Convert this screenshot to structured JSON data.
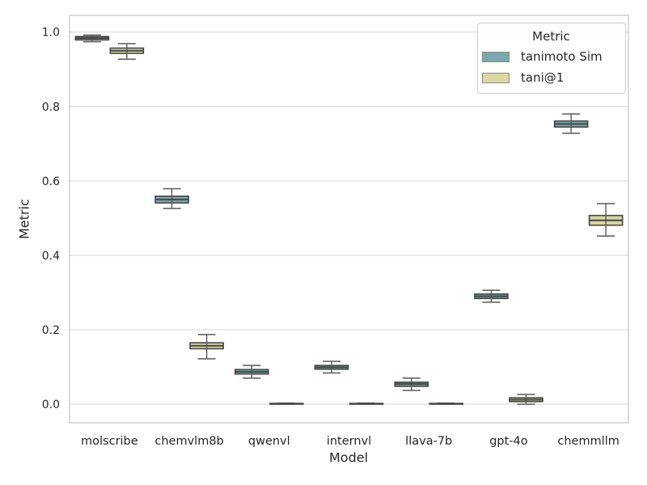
{
  "chart_data": {
    "type": "boxplot",
    "title": "",
    "xlabel": "Model",
    "ylabel": "Metric",
    "categories": [
      "molscribe",
      "chemvlm8b",
      "qwenvl",
      "internvl",
      "llava-7b",
      "gpt-4o",
      "chemmllm"
    ],
    "ylim": [
      -0.05,
      1.045
    ],
    "yticks": [
      0.0,
      0.2,
      0.4,
      0.6,
      0.8,
      1.0
    ],
    "ytick_labels": [
      "0.0",
      "0.2",
      "0.4",
      "0.6",
      "0.8",
      "1.0"
    ],
    "grid": true,
    "legend": {
      "title": "Metric",
      "position": "upper right"
    },
    "series": [
      {
        "name": "tanimoto Sim",
        "color": "#7aa9ab",
        "boxes": [
          {
            "whislo": 0.974,
            "q1": 0.979,
            "med": 0.984,
            "q3": 0.988,
            "whishi": 0.992
          },
          {
            "whislo": 0.526,
            "q1": 0.541,
            "med": 0.55,
            "q3": 0.559,
            "whishi": 0.579
          },
          {
            "whislo": 0.07,
            "q1": 0.081,
            "med": 0.087,
            "q3": 0.093,
            "whishi": 0.104
          },
          {
            "whislo": 0.084,
            "q1": 0.094,
            "med": 0.099,
            "q3": 0.104,
            "whishi": 0.115
          },
          {
            "whislo": 0.037,
            "q1": 0.048,
            "med": 0.054,
            "q3": 0.059,
            "whishi": 0.07
          },
          {
            "whislo": 0.274,
            "q1": 0.284,
            "med": 0.29,
            "q3": 0.296,
            "whishi": 0.306
          },
          {
            "whislo": 0.728,
            "q1": 0.745,
            "med": 0.753,
            "q3": 0.761,
            "whishi": 0.78
          }
        ]
      },
      {
        "name": "tani@1",
        "color": "#ddd8a1",
        "boxes": [
          {
            "whislo": 0.927,
            "q1": 0.943,
            "med": 0.95,
            "q3": 0.957,
            "whishi": 0.969
          },
          {
            "whislo": 0.122,
            "q1": 0.149,
            "med": 0.157,
            "q3": 0.165,
            "whishi": 0.187
          },
          {
            "whislo": 0.0,
            "q1": 0.0,
            "med": 0.001,
            "q3": 0.002,
            "whishi": 0.003
          },
          {
            "whislo": 0.0,
            "q1": 0.0,
            "med": 0.001,
            "q3": 0.002,
            "whishi": 0.003
          },
          {
            "whislo": 0.0,
            "q1": 0.0,
            "med": 0.001,
            "q3": 0.002,
            "whishi": 0.003
          },
          {
            "whislo": 0.0,
            "q1": 0.007,
            "med": 0.012,
            "q3": 0.017,
            "whishi": 0.026
          },
          {
            "whislo": 0.452,
            "q1": 0.481,
            "med": 0.494,
            "q3": 0.507,
            "whishi": 0.539
          }
        ]
      }
    ],
    "style": {
      "box_edge": "#454545",
      "median_color": "#454545",
      "whisker_color": "#5a5a5a",
      "grid_color": "#dddddd",
      "spine_color": "#c8c8c8",
      "text_color": "#262626",
      "background": "#ffffff"
    }
  }
}
